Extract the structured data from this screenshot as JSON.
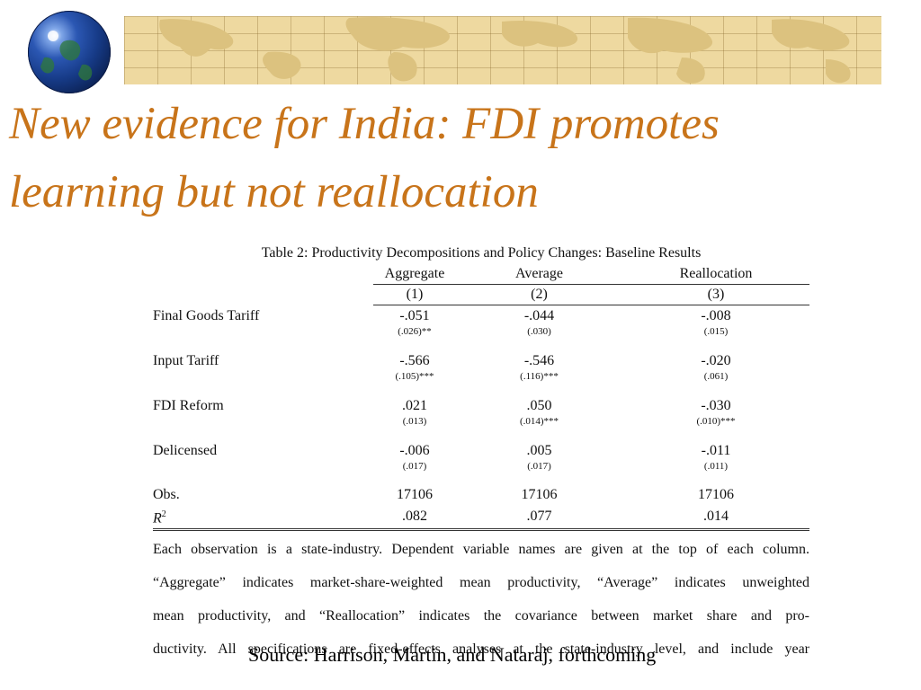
{
  "slide": {
    "title_line1": "New evidence for India: FDI promotes",
    "title_line2": "learning but not reallocation",
    "source": "Source: Harrison, Martin, and Nataraj, forthcoming",
    "accent_color": "#c8741a",
    "banner_color": "#eed9a0"
  },
  "table": {
    "caption": "Table 2: Productivity Decompositions and Policy Changes: Baseline Results",
    "columns": [
      "Aggregate",
      "Average",
      "Reallocation"
    ],
    "column_numbers": [
      "(1)",
      "(2)",
      "(3)"
    ],
    "rows": [
      {
        "label": "Final Goods Tariff",
        "values": [
          "-.051",
          "-.044",
          "-.008"
        ],
        "se": [
          "(.026)**",
          "(.030)",
          "(.015)"
        ]
      },
      {
        "label": "Input Tariff",
        "values": [
          "-.566",
          "-.546",
          "-.020"
        ],
        "se": [
          "(.105)***",
          "(.116)***",
          "(.061)"
        ]
      },
      {
        "label": "FDI Reform",
        "values": [
          ".021",
          ".050",
          "-.030"
        ],
        "se": [
          "(.013)",
          "(.014)***",
          "(.010)***"
        ]
      },
      {
        "label": "Delicensed",
        "values": [
          "-.006",
          ".005",
          "-.011"
        ],
        "se": [
          "(.017)",
          "(.017)",
          "(.011)"
        ]
      }
    ],
    "obs_label": "Obs.",
    "obs": [
      "17106",
      "17106",
      "17106"
    ],
    "r2_label": "R",
    "r2_sup": "2",
    "r2": [
      ".082",
      ".077",
      ".014"
    ],
    "notes": [
      "Each observation is a state-industry. Dependent variable names are given at the top of each column.",
      "“Aggregate” indicates market-share-weighted mean productivity, “Average” indicates unweighted",
      "mean productivity, and “Reallocation” indicates the covariance between market share and pro-",
      "ductivity. All specifications are fixed-effects analyses at the state-industry level, and include year"
    ]
  }
}
